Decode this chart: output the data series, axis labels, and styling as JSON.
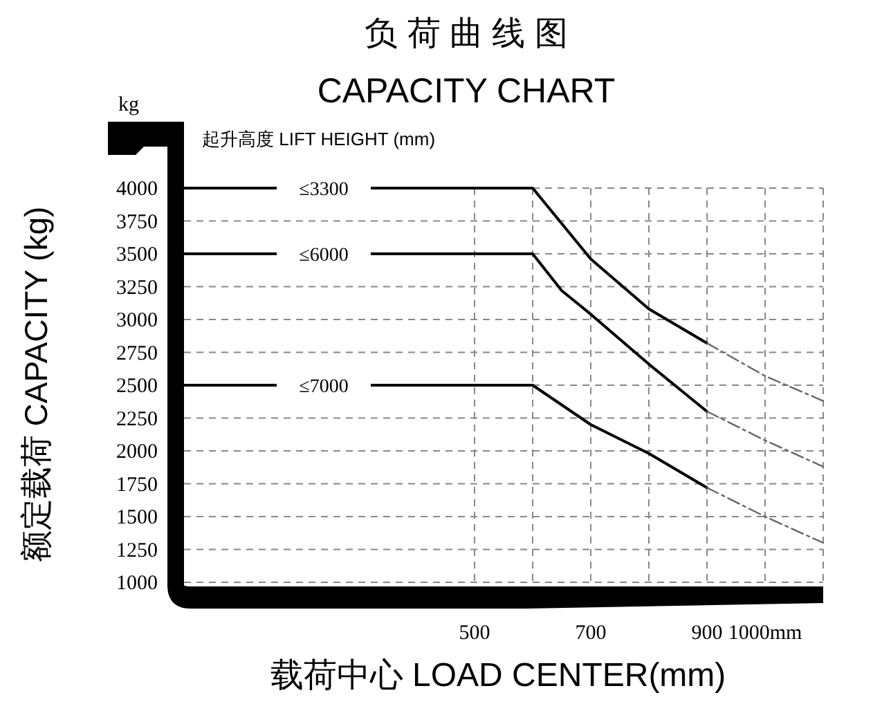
{
  "chart_data": {
    "type": "line",
    "title": "负 荷 曲 线 图",
    "subtitle": "CAPACITY CHART",
    "xlabel": "载荷中心  LOAD CENTER(mm)",
    "ylabel": "额定载荷  CAPACITY (kg)",
    "legend_title": "起升高度 LIFT HEIGHT (mm)",
    "annotations": [
      "kg"
    ],
    "xlim": [
      0,
      1100
    ],
    "ylim": [
      1000,
      4000
    ],
    "xticks": [
      500,
      700,
      900,
      {
        "value": 1000,
        "label": "1000mm"
      }
    ],
    "yticks": [
      1000,
      1250,
      1500,
      1750,
      2000,
      2250,
      2500,
      2750,
      3000,
      3250,
      3500,
      3750,
      4000
    ],
    "grid": true,
    "series": [
      {
        "name": "≤3300",
        "color": "#000000",
        "line_style": "solid",
        "x": [
          0,
          600,
          650,
          700,
          800,
          900
        ],
        "values": [
          4000,
          4000,
          3730,
          3460,
          3080,
          2820
        ]
      },
      {
        "name": "≤6000",
        "color": "#000000",
        "line_style": "solid",
        "x": [
          0,
          600,
          650,
          700,
          800,
          900
        ],
        "values": [
          3500,
          3500,
          3220,
          3040,
          2660,
          2300
        ]
      },
      {
        "name": "≤7000",
        "color": "#000000",
        "line_style": "solid",
        "x": [
          0,
          600,
          650,
          700,
          800,
          900
        ],
        "values": [
          2500,
          2500,
          2350,
          2200,
          1980,
          1720
        ]
      },
      {
        "color": "#666666",
        "line_style": "dashed",
        "x": [
          900,
          1000,
          1100
        ],
        "values": [
          2820,
          2570,
          2380
        ]
      },
      {
        "color": "#666666",
        "line_style": "dashed",
        "x": [
          900,
          1000,
          1100
        ],
        "values": [
          2300,
          2080,
          1880
        ]
      },
      {
        "color": "#666666",
        "line_style": "dashed",
        "x": [
          900,
          1000,
          1100
        ],
        "values": [
          1720,
          1500,
          1300
        ]
      }
    ]
  }
}
